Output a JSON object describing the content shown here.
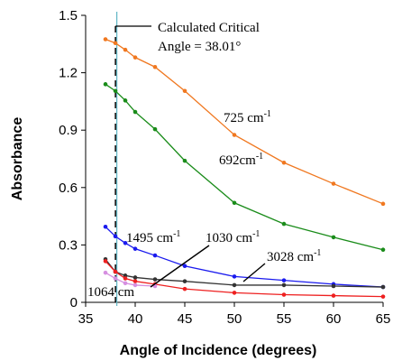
{
  "chart_data": {
    "type": "line",
    "xlabel": "Angle of Incidence (degrees)",
    "ylabel": "Absorbance",
    "xlim": [
      35,
      65
    ],
    "ylim": [
      0,
      1.5
    ],
    "xticks": [
      35,
      40,
      45,
      50,
      55,
      60,
      65
    ],
    "yticks": [
      0,
      0.3,
      0.6,
      0.9,
      1.2,
      1.5
    ],
    "xtick_labels": [
      "35",
      "40",
      "45",
      "50",
      "55",
      "60",
      "65"
    ],
    "ytick_labels": [
      "0",
      "0.3",
      "0.6",
      "0.9",
      "1.2",
      "1.5"
    ],
    "grid": false,
    "critical_angle": 38.01,
    "critical_label_line1": "Calculated     Critical",
    "critical_label_line2": "Angle = 38.01°",
    "series": [
      {
        "name": "725 cm",
        "sup": "-1",
        "color": "#f07820",
        "x": [
          37,
          38,
          39,
          40,
          42,
          45,
          50,
          55,
          60,
          65
        ],
        "y": [
          1.375,
          1.355,
          1.32,
          1.28,
          1.23,
          1.105,
          0.875,
          0.73,
          0.62,
          0.515
        ]
      },
      {
        "name": "692cm",
        "sup": "-1",
        "color": "#1a8c1a",
        "x": [
          37,
          38,
          39,
          40,
          42,
          45,
          50,
          55,
          60,
          65
        ],
        "y": [
          1.14,
          1.105,
          1.055,
          0.995,
          0.905,
          0.74,
          0.52,
          0.41,
          0.34,
          0.275
        ]
      },
      {
        "name": "1495 cm",
        "sup": "-1",
        "color": "#1a1aee",
        "x": [
          37,
          38,
          39,
          40,
          42,
          45,
          50,
          55,
          60,
          65
        ],
        "y": [
          0.395,
          0.345,
          0.31,
          0.28,
          0.245,
          0.19,
          0.135,
          0.115,
          0.095,
          0.08
        ]
      },
      {
        "name": "1030 cm",
        "sup": "-1",
        "color": "#333333",
        "x": [
          37,
          38,
          39,
          40,
          42,
          45,
          50,
          55,
          60,
          65
        ],
        "y": [
          0.225,
          0.16,
          0.14,
          0.13,
          0.12,
          0.11,
          0.09,
          0.09,
          0.085,
          0.08
        ]
      },
      {
        "name": "3028 cm",
        "sup": "-1",
        "color": "#ee2020",
        "x": [
          37,
          38,
          39,
          40,
          42,
          45,
          50,
          55,
          60,
          65
        ],
        "y": [
          0.215,
          0.16,
          0.125,
          0.11,
          0.095,
          0.07,
          0.05,
          0.04,
          0.035,
          0.03
        ]
      },
      {
        "name": "1064 cm",
        "sup": "",
        "color": "#d68fe0",
        "x": [
          37,
          38,
          39,
          40,
          42
        ],
        "y": [
          0.155,
          0.125,
          0.1,
          0.09,
          0.085
        ]
      }
    ]
  }
}
